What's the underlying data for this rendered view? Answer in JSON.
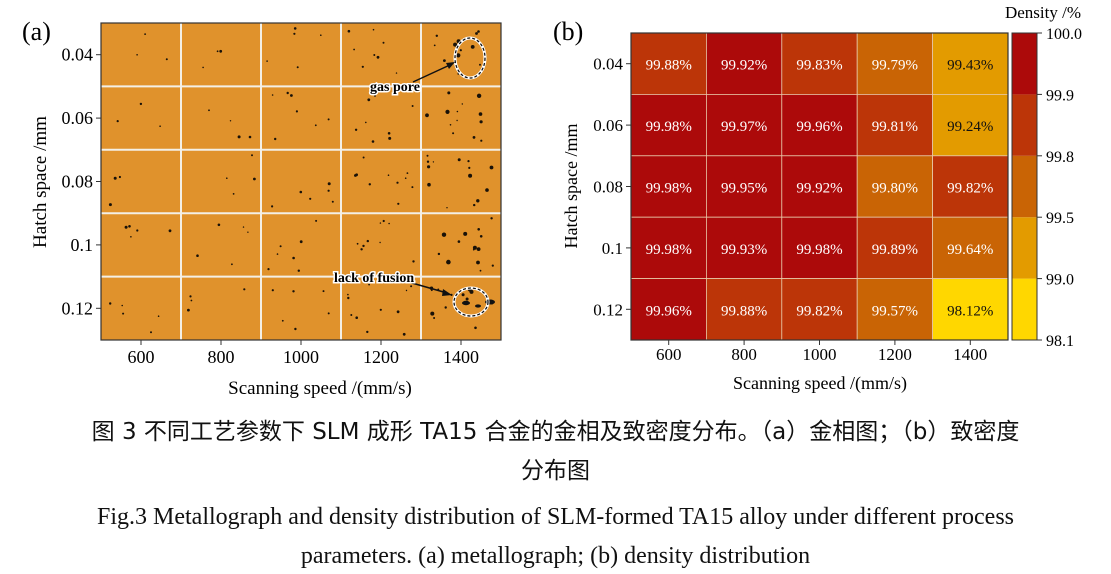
{
  "panel_a": {
    "label": "(a)",
    "xlabel": "Scanning speed /(mm/s)",
    "ylabel": "Hatch space /mm",
    "xticks": [
      "600",
      "800",
      "1000",
      "1200",
      "1400"
    ],
    "yticks": [
      "0.04",
      "0.06",
      "0.08",
      "0.1",
      "0.12"
    ],
    "annotations": {
      "gas_pore": "gas pore",
      "lack_of_fusion": "lack of fusion"
    },
    "background_color": "#E0922C"
  },
  "chart_data": {
    "type": "heatmap",
    "label": "(b)",
    "xlabel": "Scanning speed /(mm/s)",
    "ylabel": "Hatch space /mm",
    "x": [
      "600",
      "800",
      "1000",
      "1200",
      "1400"
    ],
    "y": [
      "0.04",
      "0.06",
      "0.08",
      "0.1",
      "0.12"
    ],
    "values": [
      [
        99.88,
        99.92,
        99.83,
        99.79,
        99.43
      ],
      [
        99.98,
        99.97,
        99.96,
        99.81,
        99.24
      ],
      [
        99.98,
        99.95,
        99.92,
        99.8,
        99.82
      ],
      [
        99.98,
        99.93,
        99.98,
        99.89,
        99.64
      ],
      [
        99.96,
        99.88,
        99.82,
        99.57,
        98.12
      ]
    ],
    "cell_labels": [
      [
        "99.88%",
        "99.92%",
        "99.83%",
        "99.79%",
        "99.43%"
      ],
      [
        "99.98%",
        "99.97%",
        "99.96%",
        "99.81%",
        "99.24%"
      ],
      [
        "99.98%",
        "99.95%",
        "99.92%",
        "99.80%",
        "99.82%"
      ],
      [
        "99.98%",
        "99.93%",
        "99.98%",
        "99.89%",
        "99.64%"
      ],
      [
        "99.96%",
        "99.88%",
        "99.82%",
        "99.57%",
        "98.12%"
      ]
    ],
    "colorbar": {
      "title": "Density /%",
      "ticks": [
        "100.0",
        "99.9",
        "99.8",
        "99.5",
        "99.0",
        "98.1"
      ],
      "bounds": [
        98.1,
        99.0,
        99.5,
        99.8,
        99.9,
        100.0
      ],
      "colors": [
        "#FFD700",
        "#E39B00",
        "#C96405",
        "#BC3508",
        "#AC0A0A"
      ]
    }
  },
  "caption": {
    "zh_line1": "图 3  不同工艺参数下 SLM 成形 TA15 合金的金相及致密度分布。（a）金相图；（b）致密度",
    "zh_line2": "分布图",
    "en_line1": "Fig.3 Metallograph and density distribution of SLM-formed TA15 alloy under different process",
    "en_line2": "parameters. (a) metallograph; (b) density distribution"
  }
}
